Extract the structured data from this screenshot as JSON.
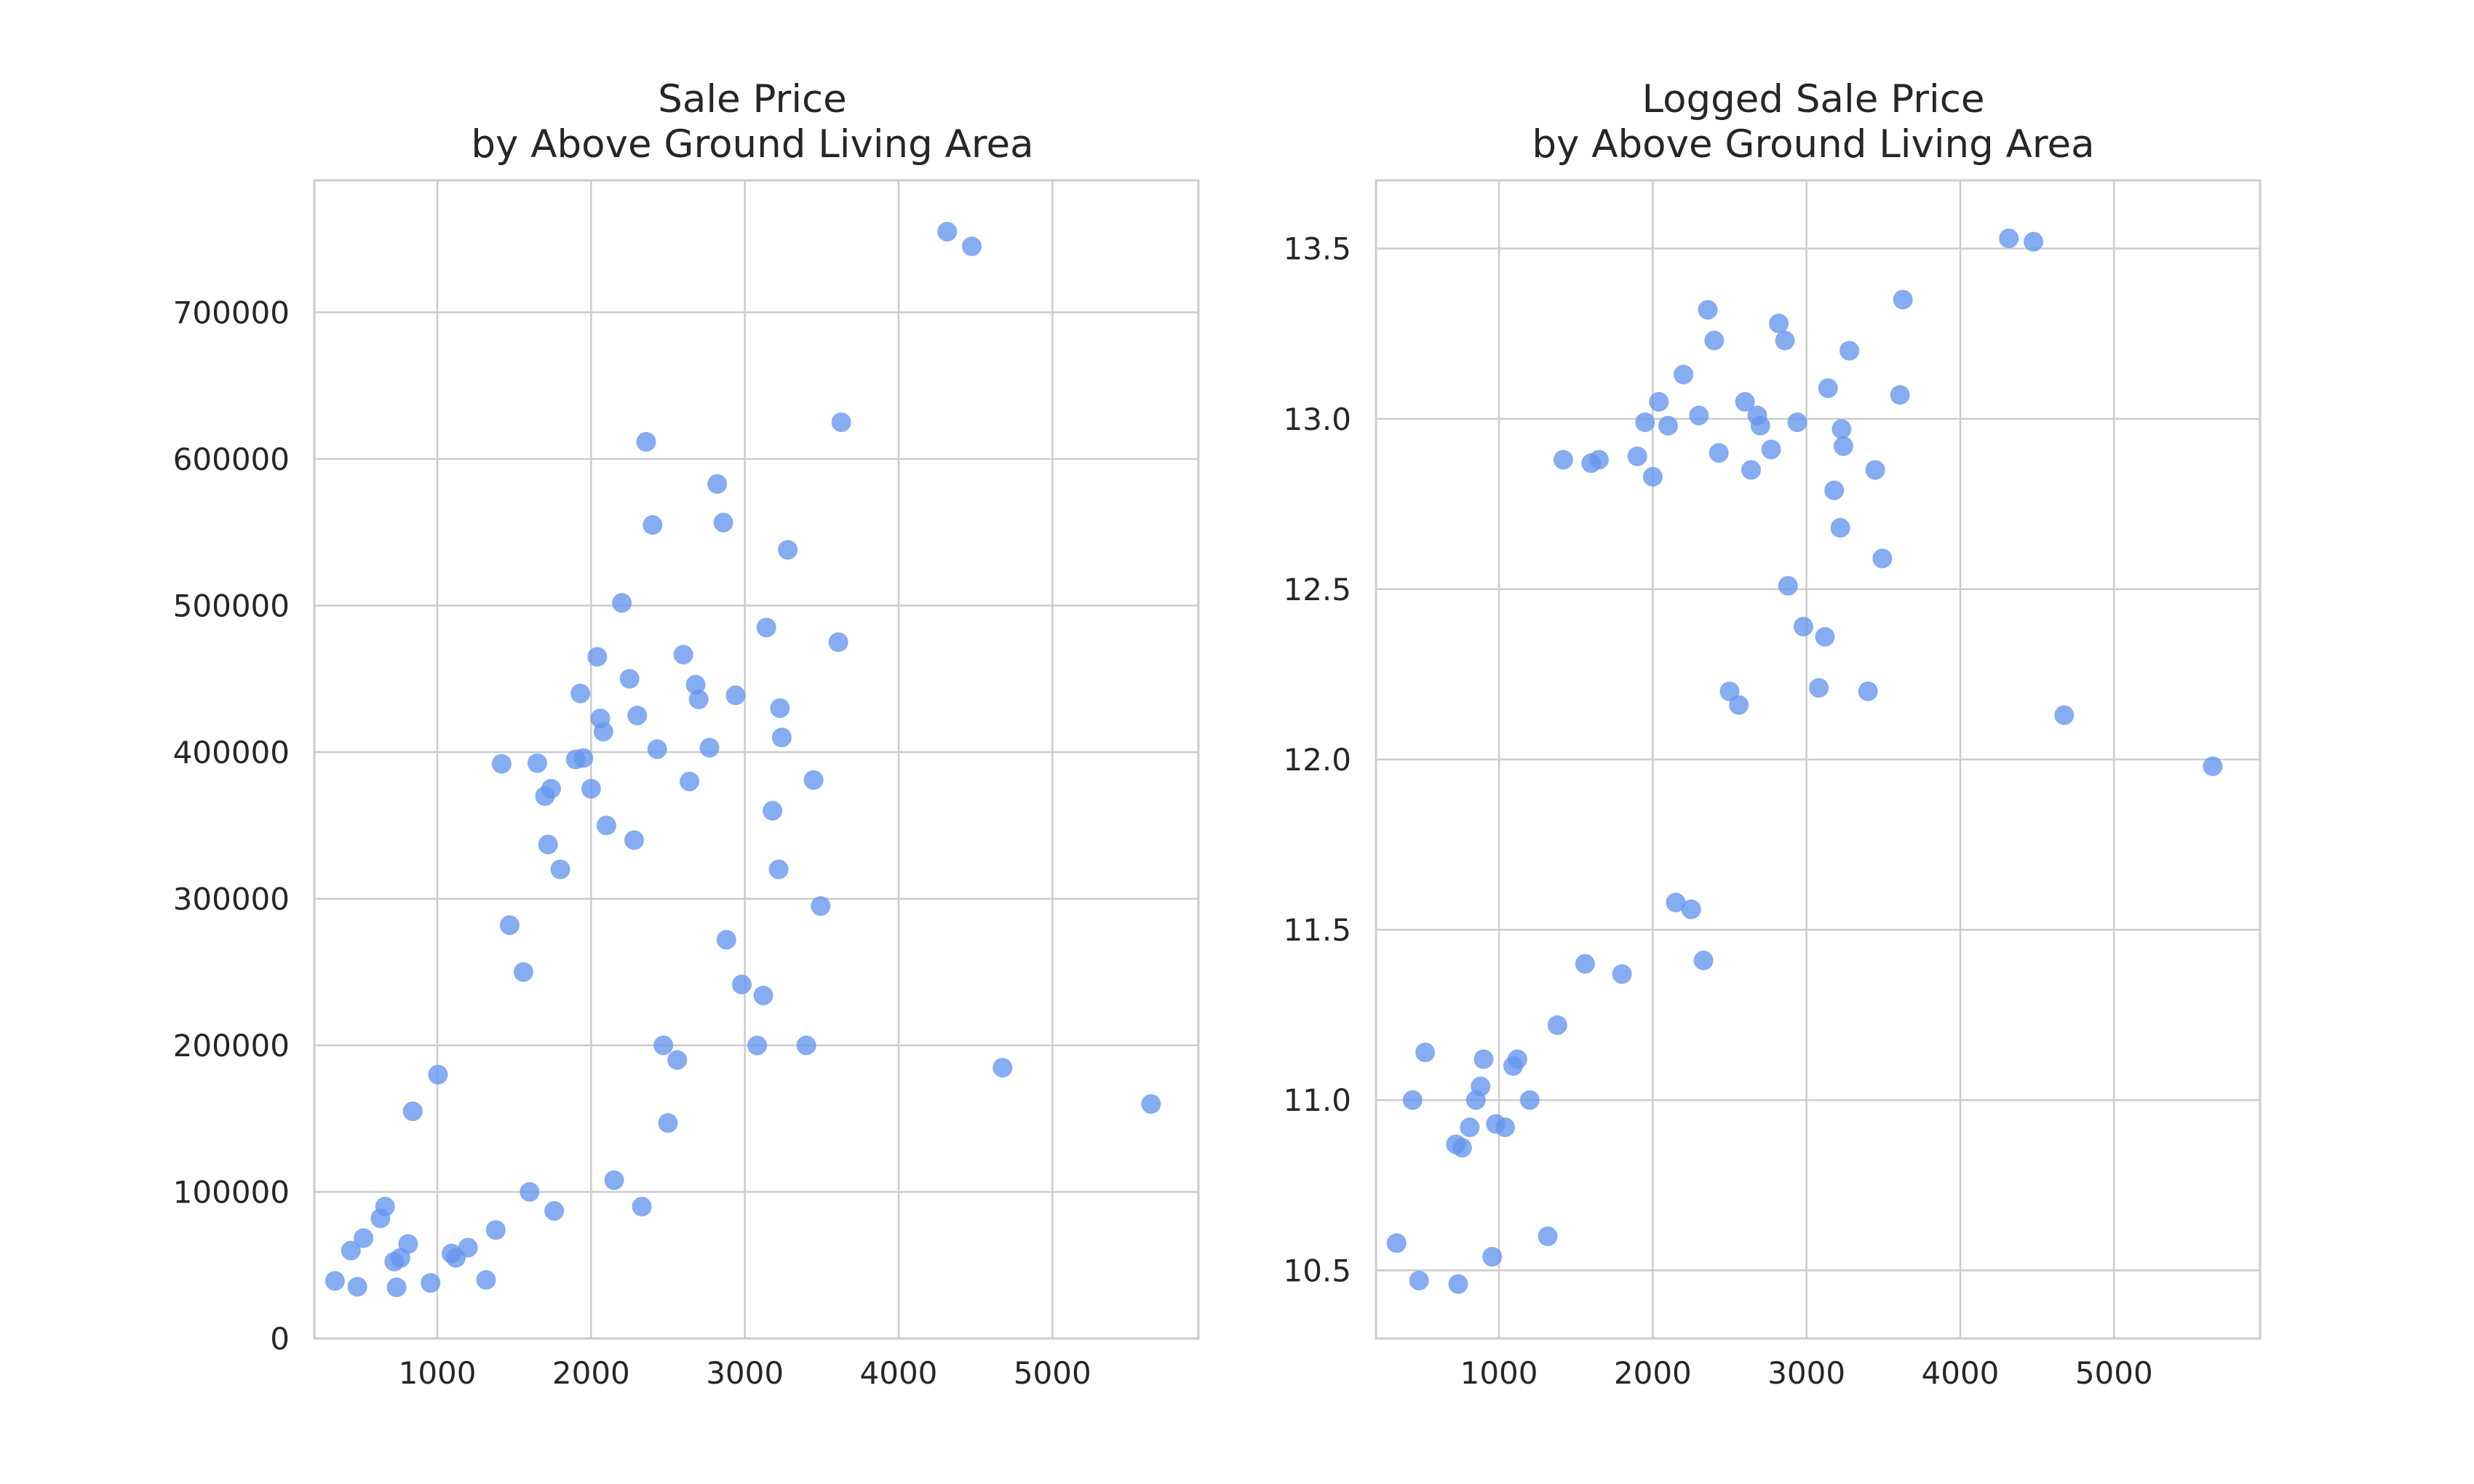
{
  "chart_data": [
    {
      "type": "scatter",
      "title_lines": [
        "Sale Price",
        "by Above Ground Living Area"
      ],
      "xlabel": "",
      "ylabel": "",
      "xlim": [
        200,
        5950
      ],
      "ylim": [
        0,
        790000
      ],
      "x_ticks": [
        1000,
        2000,
        3000,
        4000,
        5000
      ],
      "y_ticks": [
        0,
        100000,
        200000,
        300000,
        400000,
        500000,
        600000,
        700000
      ],
      "x_tick_labels": [
        "1000",
        "2000",
        "3000",
        "4000",
        "5000"
      ],
      "y_tick_labels": [
        "0",
        "100000",
        "200000",
        "300000",
        "400000",
        "500000",
        "600000",
        "700000"
      ],
      "grid": true,
      "color": "#6495ed",
      "points": [
        {
          "x": 334,
          "y": 39300
        },
        {
          "x": 438,
          "y": 60000
        },
        {
          "x": 480,
          "y": 35300
        },
        {
          "x": 520,
          "y": 68500
        },
        {
          "x": 630,
          "y": 82000
        },
        {
          "x": 660,
          "y": 90000
        },
        {
          "x": 720,
          "y": 52500
        },
        {
          "x": 735,
          "y": 34900
        },
        {
          "x": 760,
          "y": 55000
        },
        {
          "x": 810,
          "y": 64500
        },
        {
          "x": 840,
          "y": 155000
        },
        {
          "x": 956,
          "y": 37900
        },
        {
          "x": 1004,
          "y": 180000
        },
        {
          "x": 1092,
          "y": 58000
        },
        {
          "x": 1120,
          "y": 55000
        },
        {
          "x": 1200,
          "y": 62000
        },
        {
          "x": 1317,
          "y": 40000
        },
        {
          "x": 1380,
          "y": 74000
        },
        {
          "x": 1418,
          "y": 392000
        },
        {
          "x": 1470,
          "y": 282000
        },
        {
          "x": 1560,
          "y": 250000
        },
        {
          "x": 1600,
          "y": 100000
        },
        {
          "x": 1650,
          "y": 392500
        },
        {
          "x": 1700,
          "y": 370000
        },
        {
          "x": 1720,
          "y": 337000
        },
        {
          "x": 1740,
          "y": 375000
        },
        {
          "x": 1760,
          "y": 87000
        },
        {
          "x": 1800,
          "y": 320000
        },
        {
          "x": 1900,
          "y": 395000
        },
        {
          "x": 1930,
          "y": 440000
        },
        {
          "x": 1950,
          "y": 396000
        },
        {
          "x": 2000,
          "y": 375000
        },
        {
          "x": 2040,
          "y": 465000
        },
        {
          "x": 2060,
          "y": 423000
        },
        {
          "x": 2080,
          "y": 414000
        },
        {
          "x": 2100,
          "y": 350000
        },
        {
          "x": 2150,
          "y": 108000
        },
        {
          "x": 2200,
          "y": 501800
        },
        {
          "x": 2250,
          "y": 450000
        },
        {
          "x": 2280,
          "y": 340000
        },
        {
          "x": 2300,
          "y": 425000
        },
        {
          "x": 2330,
          "y": 90000
        },
        {
          "x": 2358,
          "y": 611657
        },
        {
          "x": 2400,
          "y": 555000
        },
        {
          "x": 2430,
          "y": 402000
        },
        {
          "x": 2470,
          "y": 200000
        },
        {
          "x": 2500,
          "y": 147000
        },
        {
          "x": 2560,
          "y": 190000
        },
        {
          "x": 2600,
          "y": 466500
        },
        {
          "x": 2640,
          "y": 380000
        },
        {
          "x": 2680,
          "y": 446000
        },
        {
          "x": 2700,
          "y": 436000
        },
        {
          "x": 2770,
          "y": 403000
        },
        {
          "x": 2820,
          "y": 582933
        },
        {
          "x": 2860,
          "y": 556581
        },
        {
          "x": 2880,
          "y": 272000
        },
        {
          "x": 2940,
          "y": 438780
        },
        {
          "x": 2980,
          "y": 241500
        },
        {
          "x": 3080,
          "y": 199900
        },
        {
          "x": 3120,
          "y": 234000
        },
        {
          "x": 3140,
          "y": 485000
        },
        {
          "x": 3180,
          "y": 360000
        },
        {
          "x": 3220,
          "y": 320000
        },
        {
          "x": 3228,
          "y": 430000
        },
        {
          "x": 3240,
          "y": 410000
        },
        {
          "x": 3279,
          "y": 538000
        },
        {
          "x": 3400,
          "y": 200000
        },
        {
          "x": 3447,
          "y": 381000
        },
        {
          "x": 3493,
          "y": 295000
        },
        {
          "x": 3608,
          "y": 475000
        },
        {
          "x": 3627,
          "y": 625000
        },
        {
          "x": 4316,
          "y": 755000
        },
        {
          "x": 4476,
          "y": 745000
        },
        {
          "x": 4676,
          "y": 184750
        },
        {
          "x": 5642,
          "y": 160000
        }
      ]
    },
    {
      "type": "scatter",
      "title_lines": [
        "Logged Sale Price",
        "by Above Ground Living Area"
      ],
      "xlabel": "",
      "ylabel": "",
      "xlim": [
        200,
        5950
      ],
      "ylim": [
        10.3,
        13.7
      ],
      "x_ticks": [
        1000,
        2000,
        3000,
        4000,
        5000
      ],
      "y_ticks": [
        10.5,
        11.0,
        11.5,
        12.0,
        12.5,
        13.0,
        13.5
      ],
      "x_tick_labels": [
        "1000",
        "2000",
        "3000",
        "4000",
        "5000"
      ],
      "y_tick_labels": [
        "10.5",
        "11.0",
        "11.5",
        "12.0",
        "12.5",
        "13.0",
        "13.5"
      ],
      "grid": true,
      "color": "#6495ed",
      "points": [
        {
          "x": 334,
          "y": 10.58
        },
        {
          "x": 438,
          "y": 11.0
        },
        {
          "x": 480,
          "y": 10.47
        },
        {
          "x": 520,
          "y": 11.14
        },
        {
          "x": 720,
          "y": 10.87
        },
        {
          "x": 735,
          "y": 10.46
        },
        {
          "x": 760,
          "y": 10.86
        },
        {
          "x": 810,
          "y": 10.92
        },
        {
          "x": 850,
          "y": 11.0
        },
        {
          "x": 880,
          "y": 11.04
        },
        {
          "x": 900,
          "y": 11.12
        },
        {
          "x": 956,
          "y": 10.54
        },
        {
          "x": 980,
          "y": 10.93
        },
        {
          "x": 1040,
          "y": 10.92
        },
        {
          "x": 1092,
          "y": 11.1
        },
        {
          "x": 1120,
          "y": 11.12
        },
        {
          "x": 1200,
          "y": 11.0
        },
        {
          "x": 1317,
          "y": 10.6
        },
        {
          "x": 1380,
          "y": 11.22
        },
        {
          "x": 1418,
          "y": 12.88
        },
        {
          "x": 1560,
          "y": 11.4
        },
        {
          "x": 1600,
          "y": 12.87
        },
        {
          "x": 1650,
          "y": 12.88
        },
        {
          "x": 1800,
          "y": 11.37
        },
        {
          "x": 1900,
          "y": 12.89
        },
        {
          "x": 1950,
          "y": 12.99
        },
        {
          "x": 2000,
          "y": 12.83
        },
        {
          "x": 2040,
          "y": 13.05
        },
        {
          "x": 2100,
          "y": 12.98
        },
        {
          "x": 2150,
          "y": 11.58
        },
        {
          "x": 2200,
          "y": 13.13
        },
        {
          "x": 2250,
          "y": 11.56
        },
        {
          "x": 2300,
          "y": 13.01
        },
        {
          "x": 2330,
          "y": 11.41
        },
        {
          "x": 2358,
          "y": 13.32
        },
        {
          "x": 2400,
          "y": 13.23
        },
        {
          "x": 2430,
          "y": 12.9
        },
        {
          "x": 2500,
          "y": 12.2
        },
        {
          "x": 2560,
          "y": 12.16
        },
        {
          "x": 2600,
          "y": 13.05
        },
        {
          "x": 2640,
          "y": 12.85
        },
        {
          "x": 2680,
          "y": 13.01
        },
        {
          "x": 2700,
          "y": 12.98
        },
        {
          "x": 2770,
          "y": 12.91
        },
        {
          "x": 2820,
          "y": 13.28
        },
        {
          "x": 2860,
          "y": 13.23
        },
        {
          "x": 2880,
          "y": 12.51
        },
        {
          "x": 2940,
          "y": 12.99
        },
        {
          "x": 2980,
          "y": 12.39
        },
        {
          "x": 3080,
          "y": 12.21
        },
        {
          "x": 3120,
          "y": 12.36
        },
        {
          "x": 3140,
          "y": 13.09
        },
        {
          "x": 3180,
          "y": 12.79
        },
        {
          "x": 3220,
          "y": 12.68
        },
        {
          "x": 3228,
          "y": 12.97
        },
        {
          "x": 3240,
          "y": 12.92
        },
        {
          "x": 3279,
          "y": 13.2
        },
        {
          "x": 3400,
          "y": 12.2
        },
        {
          "x": 3447,
          "y": 12.85
        },
        {
          "x": 3493,
          "y": 12.59
        },
        {
          "x": 3608,
          "y": 13.07
        },
        {
          "x": 3627,
          "y": 13.35
        },
        {
          "x": 4316,
          "y": 13.53
        },
        {
          "x": 4476,
          "y": 13.52
        },
        {
          "x": 4676,
          "y": 12.13
        },
        {
          "x": 5642,
          "y": 11.98
        }
      ]
    }
  ]
}
